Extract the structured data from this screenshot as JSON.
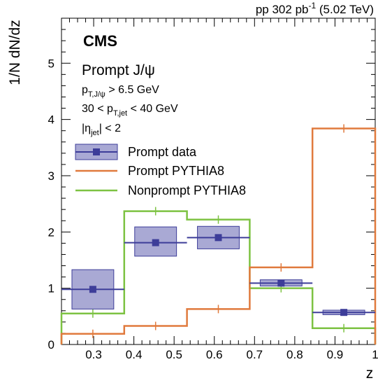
{
  "header": {
    "lumi_prefix": "pp 302 pb",
    "lumi_exp": "-1",
    "lumi_suffix": " (5.02 TeV)"
  },
  "cms_label": "CMS",
  "annotations": {
    "title": "Prompt J/ψ",
    "pt_cut_main": "p",
    "pt_cut_sub": "T,J/ψ",
    "pt_cut_rest": " > 6.5 GeV",
    "jet_pre": "30 < p",
    "jet_sub": "T,jet",
    "jet_post": " < 40 GeV",
    "eta_pre": "|η",
    "eta_sub": "jet",
    "eta_post": "| < 2"
  },
  "chart_data": {
    "type": "histogram",
    "xlabel": "z",
    "ylabel": "1/N dN/dz",
    "xlim": [
      0.22,
      1.0
    ],
    "ylim": [
      0,
      5.8
    ],
    "x_ticks": [
      0.3,
      0.4,
      0.5,
      0.6,
      0.7,
      0.8,
      0.9,
      1.0
    ],
    "x_tick_labels": [
      "0.3",
      "0.4",
      "0.5",
      "0.6",
      "0.7",
      "0.8",
      "0.9",
      "1"
    ],
    "y_ticks": [
      0,
      1,
      2,
      3,
      4,
      5
    ],
    "y_tick_labels": [
      "0",
      "1",
      "2",
      "3",
      "4",
      "5"
    ],
    "bin_edges": [
      0.22,
      0.376,
      0.532,
      0.688,
      0.844,
      1.0
    ],
    "series": [
      {
        "name": "Prompt data",
        "type": "points",
        "color": "#3d3d99",
        "fill": "#a9a9d4",
        "x": [
          0.298,
          0.454,
          0.61,
          0.766,
          0.922
        ],
        "values": [
          0.98,
          1.81,
          1.9,
          1.09,
          0.57
        ],
        "syst_low": [
          0.63,
          1.57,
          1.7,
          1.04,
          0.53
        ],
        "syst_high": [
          1.33,
          2.09,
          2.1,
          1.15,
          0.61
        ],
        "syst_halfwidth": [
          0.052,
          0.052,
          0.052,
          0.052,
          0.052
        ]
      },
      {
        "name": "Prompt PYTHIA8",
        "type": "step",
        "color": "#e07a3d",
        "values": [
          0.19,
          0.33,
          0.63,
          1.37,
          3.84
        ]
      },
      {
        "name": "Nonprompt PYTHIA8",
        "type": "step",
        "color": "#7dc242",
        "values": [
          0.55,
          2.37,
          2.22,
          1.0,
          0.29
        ]
      }
    ],
    "legend_position": "top-left"
  }
}
